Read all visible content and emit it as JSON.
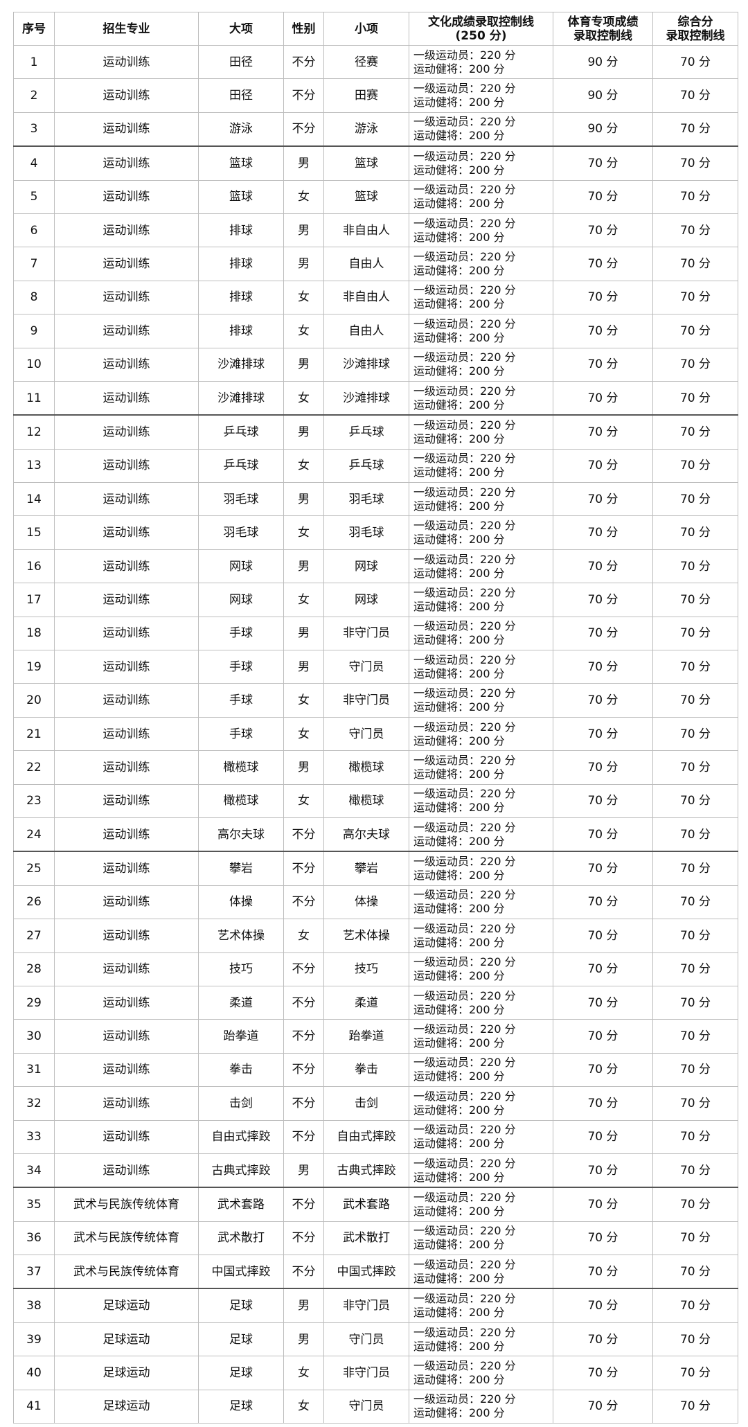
{
  "headers": [
    "序号",
    "招生专业",
    "大项",
    "性别",
    "小项",
    "文化成绩录取控制线",
    "(250 分)",
    "体育专项成绩",
    "录取控制线",
    "综合分",
    "录取控制线"
  ],
  "culture_lines": [
    "一级运动员：220 分",
    "运动健将：200 分"
  ],
  "rows": [
    [
      "1",
      "运动训练",
      "田径",
      "不分",
      "径赛",
      "90 分",
      "70 分"
    ],
    [
      "2",
      "运动训练",
      "田径",
      "不分",
      "田赛",
      "90 分",
      "70 分"
    ],
    [
      "3",
      "运动训练",
      "游泳",
      "不分",
      "游泳",
      "90 分",
      "70 分"
    ],
    [
      "4",
      "运动训练",
      "篮球",
      "男",
      "篮球",
      "70 分",
      "70 分"
    ],
    [
      "5",
      "运动训练",
      "篮球",
      "女",
      "篮球",
      "70 分",
      "70 分"
    ],
    [
      "6",
      "运动训练",
      "排球",
      "男",
      "非自由人",
      "70 分",
      "70 分"
    ],
    [
      "7",
      "运动训练",
      "排球",
      "男",
      "自由人",
      "70 分",
      "70 分"
    ],
    [
      "8",
      "运动训练",
      "排球",
      "女",
      "非自由人",
      "70 分",
      "70 分"
    ],
    [
      "9",
      "运动训练",
      "排球",
      "女",
      "自由人",
      "70 分",
      "70 分"
    ],
    [
      "10",
      "运动训练",
      "沙滩排球",
      "男",
      "沙滩排球",
      "70 分",
      "70 分"
    ],
    [
      "11",
      "运动训练",
      "沙滩排球",
      "女",
      "沙滩排球",
      "70 分",
      "70 分"
    ],
    [
      "12",
      "运动训练",
      "乒乓球",
      "男",
      "乒乓球",
      "70 分",
      "70 分"
    ],
    [
      "13",
      "运动训练",
      "乒乓球",
      "女",
      "乒乓球",
      "70 分",
      "70 分"
    ],
    [
      "14",
      "运动训练",
      "羽毛球",
      "男",
      "羽毛球",
      "70 分",
      "70 分"
    ],
    [
      "15",
      "运动训练",
      "羽毛球",
      "女",
      "羽毛球",
      "70 分",
      "70 分"
    ],
    [
      "16",
      "运动训练",
      "网球",
      "男",
      "网球",
      "70 分",
      "70 分"
    ],
    [
      "17",
      "运动训练",
      "网球",
      "女",
      "网球",
      "70 分",
      "70 分"
    ],
    [
      "18",
      "运动训练",
      "手球",
      "男",
      "非守门员",
      "70 分",
      "70 分"
    ],
    [
      "19",
      "运动训练",
      "手球",
      "男",
      "守门员",
      "70 分",
      "70 分"
    ],
    [
      "20",
      "运动训练",
      "手球",
      "女",
      "非守门员",
      "70 分",
      "70 分"
    ],
    [
      "21",
      "运动训练",
      "手球",
      "女",
      "守门员",
      "70 分",
      "70 分"
    ],
    [
      "22",
      "运动训练",
      "橄榄球",
      "男",
      "橄榄球",
      "70 分",
      "70 分"
    ],
    [
      "23",
      "运动训练",
      "橄榄球",
      "女",
      "橄榄球",
      "70 分",
      "70 分"
    ],
    [
      "24",
      "运动训练",
      "高尔夫球",
      "不分",
      "高尔夫球",
      "70 分",
      "70 分"
    ],
    [
      "25",
      "运动训练",
      "攀岩",
      "不分",
      "攀岩",
      "70 分",
      "70 分"
    ],
    [
      "26",
      "运动训练",
      "体操",
      "不分",
      "体操",
      "70 分",
      "70 分"
    ],
    [
      "27",
      "运动训练",
      "艺术体操",
      "女",
      "艺术体操",
      "70 分",
      "70 分"
    ],
    [
      "28",
      "运动训练",
      "技巧",
      "不分",
      "技巧",
      "70 分",
      "70 分"
    ],
    [
      "29",
      "运动训练",
      "柔道",
      "不分",
      "柔道",
      "70 分",
      "70 分"
    ],
    [
      "30",
      "运动训练",
      "跆拳道",
      "不分",
      "跆拳道",
      "70 分",
      "70 分"
    ],
    [
      "31",
      "运动训练",
      "拳击",
      "不分",
      "拳击",
      "70 分",
      "70 分"
    ],
    [
      "32",
      "运动训练",
      "击剑",
      "不分",
      "击剑",
      "70 分",
      "70 分"
    ],
    [
      "33",
      "运动训练",
      "自由式摔跤",
      "不分",
      "自由式摔跤",
      "70 分",
      "70 分"
    ],
    [
      "34",
      "运动训练",
      "古典式摔跤",
      "男",
      "古典式摔跤",
      "70 分",
      "70 分"
    ],
    [
      "35",
      "武术与民族传统体育",
      "武术套路",
      "不分",
      "武术套路",
      "70 分",
      "70 分"
    ],
    [
      "36",
      "武术与民族传统体育",
      "武术散打",
      "不分",
      "武术散打",
      "70 分",
      "70 分"
    ],
    [
      "37",
      "武术与民族传统体育",
      "中国式摔跤",
      "不分",
      "中国式摔跤",
      "70 分",
      "70 分"
    ],
    [
      "38",
      "足球运动",
      "足球",
      "男",
      "非守门员",
      "70 分",
      "70 分"
    ],
    [
      "39",
      "足球运动",
      "足球",
      "男",
      "守门员",
      "70 分",
      "70 分"
    ],
    [
      "40",
      "足球运动",
      "足球",
      "女",
      "非守门员",
      "70 分",
      "70 分"
    ],
    [
      "41",
      "足球运动",
      "足球",
      "女",
      "守门员",
      "70 分",
      "70 分"
    ]
  ]
}
